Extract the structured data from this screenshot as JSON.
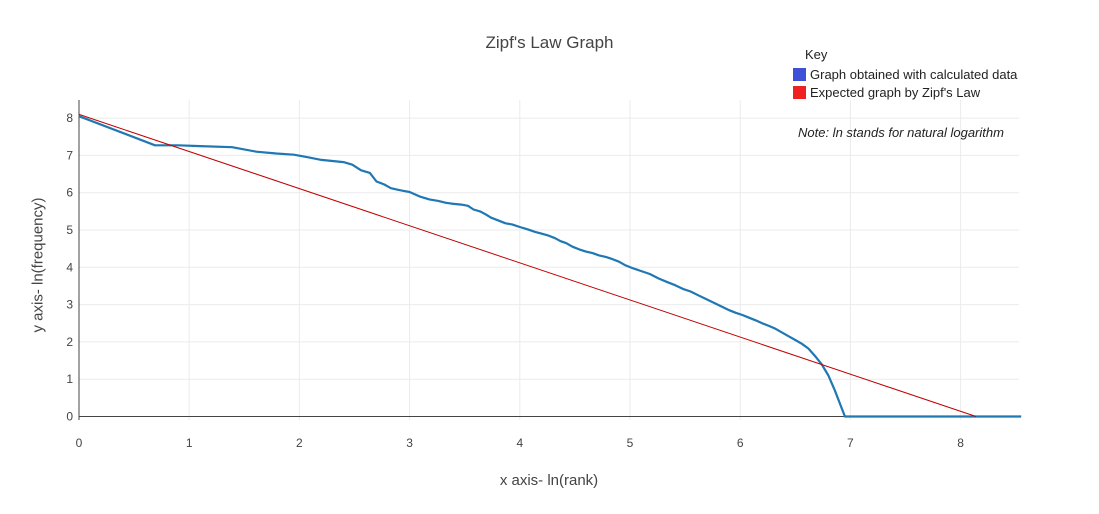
{
  "chart_data": {
    "type": "line",
    "title": "Zipf's Law Graph",
    "xlabel": "x axis- ln(rank)",
    "ylabel": "y axis- ln(frequency)",
    "xlim": [
      0,
      8.55
    ],
    "ylim": [
      -0.1,
      8.5
    ],
    "xticks": [
      "0",
      "1",
      "2",
      "3",
      "4",
      "5",
      "6",
      "7",
      "8"
    ],
    "yticks": [
      "0",
      "1",
      "2",
      "3",
      "4",
      "5",
      "6",
      "7",
      "8"
    ],
    "grid": true,
    "legend": {
      "title": "Key",
      "placement": "top-right",
      "entries": [
        {
          "label": "Graph obtained with calculated data",
          "color": "#3f4fd6"
        },
        {
          "label": "Expected graph by Zipf's Law",
          "color": "#ee2222"
        }
      ]
    },
    "annotations": [
      "Note: ln stands for natural logarithm"
    ],
    "series": [
      {
        "color": "#1f77b4",
        "x": [
          0,
          0.69,
          0.9,
          1.1,
          1.39,
          1.61,
          1.79,
          1.95,
          2.08,
          2.2,
          2.3,
          2.4,
          2.48,
          2.56,
          2.64,
          2.7,
          2.77,
          2.83,
          2.89,
          2.94,
          3.0,
          3.09,
          3.18,
          3.26,
          3.33,
          3.4,
          3.47,
          3.53,
          3.58,
          3.64,
          3.69,
          3.74,
          3.81,
          3.87,
          3.93,
          4.0,
          4.07,
          4.14,
          4.2,
          4.26,
          4.32,
          4.37,
          4.42,
          4.48,
          4.54,
          4.6,
          4.66,
          4.72,
          4.78,
          4.84,
          4.9,
          4.96,
          5.02,
          5.1,
          5.18,
          5.26,
          5.34,
          5.41,
          5.48,
          5.55,
          5.62,
          5.69,
          5.76,
          5.83,
          5.9,
          5.96,
          6.02,
          6.08,
          6.14,
          6.2,
          6.26,
          6.32,
          6.38,
          6.44,
          6.5,
          6.56,
          6.62,
          6.68,
          6.74,
          6.8,
          6.86,
          6.95,
          7.05,
          7.15,
          7.28,
          7.4,
          7.52,
          7.64,
          7.76,
          7.88,
          8.0,
          8.55
        ],
        "y": [
          8.05,
          7.27,
          7.27,
          7.25,
          7.22,
          7.1,
          7.05,
          7.02,
          6.95,
          6.88,
          6.85,
          6.82,
          6.75,
          6.6,
          6.53,
          6.3,
          6.22,
          6.12,
          6.08,
          6.05,
          6.02,
          5.9,
          5.82,
          5.78,
          5.73,
          5.7,
          5.68,
          5.65,
          5.55,
          5.5,
          5.42,
          5.33,
          5.25,
          5.18,
          5.15,
          5.08,
          5.02,
          4.95,
          4.9,
          4.85,
          4.78,
          4.7,
          4.65,
          4.55,
          4.48,
          4.42,
          4.38,
          4.32,
          4.28,
          4.22,
          4.15,
          4.05,
          3.98,
          3.9,
          3.82,
          3.7,
          3.6,
          3.52,
          3.42,
          3.35,
          3.25,
          3.15,
          3.05,
          2.95,
          2.85,
          2.78,
          2.72,
          2.65,
          2.58,
          2.5,
          2.43,
          2.35,
          2.25,
          2.15,
          2.05,
          1.95,
          1.82,
          1.62,
          1.4,
          1.1,
          0.69,
          0.0,
          0.0,
          0.0,
          0.0,
          0.0,
          0.0,
          0.0,
          0.0,
          0.0,
          0.0,
          0.0
        ]
      },
      {
        "color": "#c00000",
        "x": [
          0,
          8.14
        ],
        "y": [
          8.1,
          0.0
        ]
      }
    ]
  }
}
